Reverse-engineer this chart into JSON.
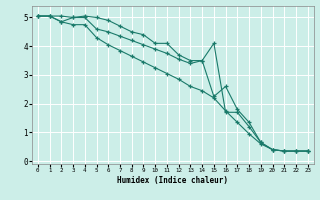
{
  "xlabel": "Humidex (Indice chaleur)",
  "bg_color": "#cceee8",
  "line_color": "#1a7a6a",
  "grid_color": "#ffffff",
  "xmin": -0.5,
  "xmax": 23.5,
  "ymin": -0.1,
  "ymax": 5.4,
  "yticks": [
    0,
    1,
    2,
    3,
    4,
    5
  ],
  "xticks": [
    0,
    1,
    2,
    3,
    4,
    5,
    6,
    7,
    8,
    9,
    10,
    11,
    12,
    13,
    14,
    15,
    16,
    17,
    18,
    19,
    20,
    21,
    22,
    23
  ],
  "line1_x": [
    0,
    1,
    2,
    3,
    4,
    5,
    6,
    7,
    8,
    9,
    10,
    11,
    12,
    13,
    14,
    15,
    16,
    17,
    18,
    19,
    20,
    21,
    22,
    23
  ],
  "line1_y": [
    5.05,
    5.05,
    5.05,
    5.0,
    5.05,
    5.0,
    4.9,
    4.7,
    4.5,
    4.4,
    4.1,
    4.1,
    3.7,
    3.5,
    3.5,
    4.1,
    1.7,
    1.7,
    1.2,
    0.65,
    0.4,
    0.35,
    0.35,
    0.35
  ],
  "line2_x": [
    0,
    1,
    2,
    3,
    4,
    5,
    6,
    7,
    8,
    9,
    10,
    11,
    12,
    13,
    14,
    15,
    16,
    17,
    18,
    19,
    20,
    21,
    22,
    23
  ],
  "line2_y": [
    5.05,
    5.05,
    4.85,
    5.0,
    5.0,
    4.6,
    4.5,
    4.35,
    4.2,
    4.05,
    3.9,
    3.75,
    3.55,
    3.4,
    3.5,
    2.25,
    2.6,
    1.8,
    1.35,
    0.65,
    0.4,
    0.35,
    0.35,
    0.35
  ],
  "line3_x": [
    0,
    1,
    2,
    3,
    4,
    5,
    6,
    7,
    8,
    9,
    10,
    11,
    12,
    13,
    14,
    15,
    16,
    17,
    18,
    19,
    20,
    21,
    22,
    23
  ],
  "line3_y": [
    5.05,
    5.05,
    4.85,
    4.75,
    4.75,
    4.3,
    4.05,
    3.85,
    3.65,
    3.45,
    3.25,
    3.05,
    2.85,
    2.6,
    2.45,
    2.2,
    1.75,
    1.35,
    0.95,
    0.6,
    0.4,
    0.35,
    0.35,
    0.35
  ]
}
